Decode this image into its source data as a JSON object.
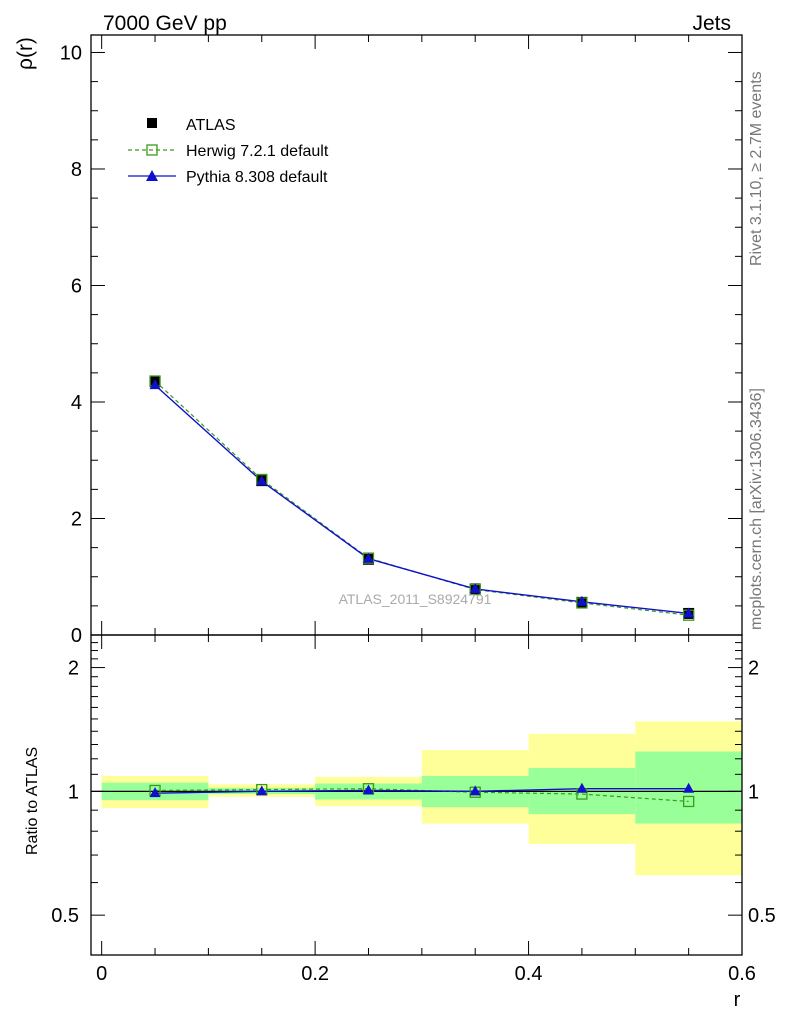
{
  "header": {
    "left": "7000 GeV pp",
    "right": "Jets"
  },
  "side_labels": {
    "rivet": "Rivet 3.1.10, ≥ 2.7M events",
    "mcplots": "mcplots.cern.ch [arXiv:1306.3436]"
  },
  "analysis_id": "ATLAS_2011_S8924791",
  "legend": [
    {
      "label": "ATLAS",
      "marker": "square-filled",
      "color": "#000000"
    },
    {
      "label": "Herwig 7.2.1 default",
      "marker": "square-open",
      "color": "#3a9a1a"
    },
    {
      "label": "Pythia 8.308 default",
      "marker": "triangle",
      "color": "#1010cc"
    }
  ],
  "chart_data": [
    {
      "type": "line",
      "panel": "main",
      "ylabel": "ρ(r)",
      "xlim": [
        -0.01,
        0.6
      ],
      "ylim": [
        0,
        10.3
      ],
      "yticks": [
        "0",
        "2",
        "4",
        "6",
        "8",
        "10"
      ],
      "x": [
        0.05,
        0.15,
        0.25,
        0.35,
        0.45,
        0.55
      ],
      "series": [
        {
          "name": "ATLAS",
          "values": [
            4.35,
            2.65,
            1.3,
            0.79,
            0.56,
            0.37
          ]
        },
        {
          "name": "Herwig 7.2.1 default",
          "values": [
            4.36,
            2.67,
            1.32,
            0.78,
            0.55,
            0.34
          ]
        },
        {
          "name": "Pythia 8.308 default",
          "values": [
            4.29,
            2.64,
            1.31,
            0.79,
            0.57,
            0.37
          ]
        }
      ]
    },
    {
      "type": "line",
      "panel": "ratio",
      "ylabel": "Ratio to ATLAS",
      "xlabel": "r",
      "xlim": [
        -0.01,
        0.6
      ],
      "xticks": [
        "0",
        "0.2",
        "0.4",
        "0.6"
      ],
      "ylog": true,
      "ylim": [
        0.4,
        2.4
      ],
      "yticks": [
        "0.5",
        "1",
        "2"
      ],
      "bins": [
        [
          0.0,
          0.1
        ],
        [
          0.1,
          0.2
        ],
        [
          0.2,
          0.3
        ],
        [
          0.3,
          0.4
        ],
        [
          0.4,
          0.5
        ],
        [
          0.5,
          0.6
        ]
      ],
      "stat_band": [
        [
          0.952,
          1.05
        ],
        [
          0.985,
          1.02
        ],
        [
          0.955,
          1.045
        ],
        [
          0.915,
          1.09
        ],
        [
          0.88,
          1.14
        ],
        [
          0.835,
          1.25
        ]
      ],
      "total_band": [
        [
          0.91,
          1.09
        ],
        [
          0.97,
          1.04
        ],
        [
          0.92,
          1.085
        ],
        [
          0.835,
          1.26
        ],
        [
          0.745,
          1.38
        ],
        [
          0.625,
          1.48
        ]
      ],
      "x": [
        0.05,
        0.15,
        0.25,
        0.35,
        0.45,
        0.55
      ],
      "series": [
        {
          "name": "Herwig 7.2.1 default",
          "values": [
            1.005,
            1.01,
            1.015,
            0.995,
            0.985,
            0.945
          ]
        },
        {
          "name": "Pythia 8.308 default",
          "values": [
            0.99,
            1.0,
            1.005,
            1.0,
            1.015,
            1.015
          ]
        }
      ]
    }
  ]
}
